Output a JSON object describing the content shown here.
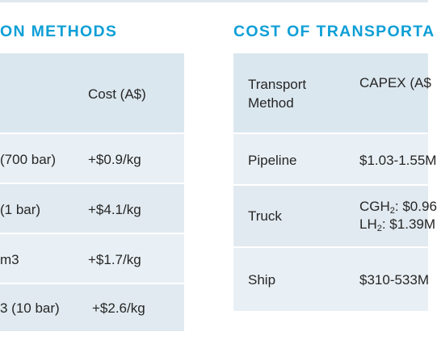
{
  "left": {
    "heading": "ON METHODS",
    "header_cost": "Cost (A$)",
    "rows": [
      {
        "method": "(700 bar)",
        "cost": "+$0.9/kg"
      },
      {
        "method": "(1 bar)",
        "cost": "+$4.1/kg"
      },
      {
        "method": "m3",
        "cost": "+$1.7/kg"
      },
      {
        "method": "3 (10 bar)",
        "cost": "+$2.6/kg"
      }
    ]
  },
  "right": {
    "heading": "COST OF TRANSPORTA",
    "header_method": "Transport Method",
    "header_capex": "CAPEX (A$",
    "rows": [
      {
        "method": "Pipeline",
        "capex": "$1.03-1.55M"
      },
      {
        "method": "Truck",
        "capex_line1_prefix": "CGH",
        "capex_line1_sub": "2",
        "capex_line1_suffix": ": $0.96",
        "capex_line2_prefix": "LH",
        "capex_line2_sub": "2",
        "capex_line2_suffix": ": $1.39M"
      },
      {
        "method": "Ship",
        "capex": "$310-533M"
      }
    ]
  }
}
